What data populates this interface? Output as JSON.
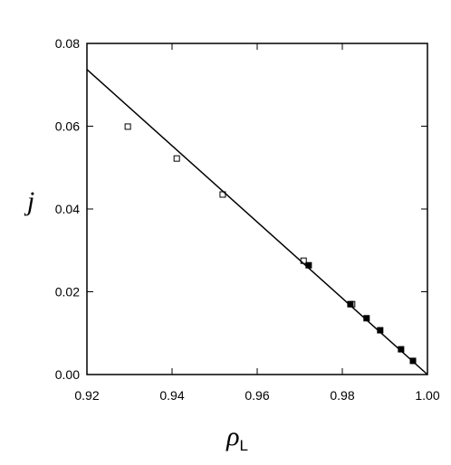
{
  "chart_data": {
    "type": "scatter",
    "xlabel": "ρ",
    "xlabel_subscript": "L",
    "ylabel": "j",
    "xlim": [
      0.92,
      1.0
    ],
    "xticks": [
      0.92,
      0.94,
      0.96,
      0.98,
      {
        "value": 1.0,
        "label": "1.00"
      }
    ],
    "ylim": [
      0,
      0.08
    ],
    "yticks": [
      {
        "value": 0,
        "label": "0.00"
      },
      0.02,
      0.04,
      0.06,
      0.08
    ],
    "series": [
      {
        "marker": "open-square",
        "color": "#000000",
        "x": [
          0.9296,
          0.9411,
          0.9519,
          0.9709,
          0.9823
        ],
        "values": [
          0.0599,
          0.0522,
          0.0435,
          0.0275,
          0.017
        ]
      },
      {
        "marker": "filled-square",
        "color": "#000000",
        "x": [
          0.9721,
          0.9819,
          0.9857,
          0.9889,
          0.9938,
          0.9966
        ],
        "values": [
          0.0264,
          0.017,
          0.0136,
          0.0107,
          0.0061,
          0.0033
        ]
      },
      {
        "marker": "line",
        "color": "#000000",
        "x": [
          0.92,
          1.0
        ],
        "values": [
          0.0737,
          0
        ]
      }
    ]
  }
}
